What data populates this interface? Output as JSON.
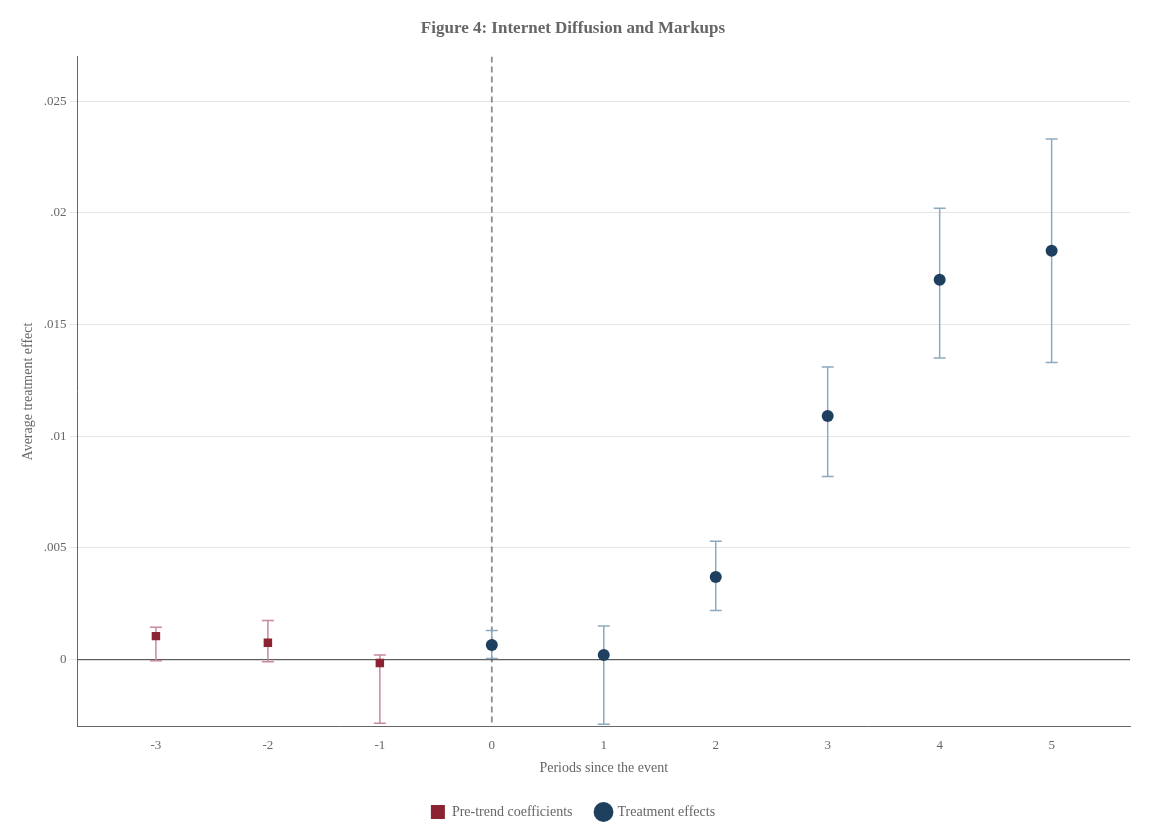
{
  "chart_data": {
    "type": "scatter",
    "title": "Figure 4: Internet Diffusion and Markups",
    "x_label": "Periods since the event",
    "y_label": "Average treatment effect",
    "xlim": [
      -3.7,
      5.7
    ],
    "ylim": [
      -0.003,
      0.027
    ],
    "xticks": [
      -3,
      -2,
      -1,
      0,
      1,
      2,
      3,
      4,
      5
    ],
    "yticks": [
      0,
      {
        "value": 0.005,
        "label": ".005"
      },
      {
        "value": 0.01,
        "label": ".01"
      },
      {
        "value": 0.015,
        "label": ".015"
      },
      {
        "value": 0.02,
        "label": ".02"
      },
      {
        "value": 0.025,
        "label": ".025"
      }
    ],
    "grid": "y",
    "legend": "bottom",
    "hline": 0,
    "vline": 0,
    "vline_style": "dashed",
    "series": [
      {
        "name": "Pre-trend coefficients",
        "color": "#8B2332",
        "error_color": "#C8899A",
        "marker": "square",
        "x": [
          -3,
          -2,
          -1
        ],
        "values": [
          0.00105,
          0.00075,
          -0.00015
        ],
        "ci_low": [
          -5e-05,
          -0.0001,
          -0.00285
        ],
        "ci_high": [
          0.00145,
          0.00175,
          0.0002
        ]
      },
      {
        "name": "Treatment effects",
        "color": "#1F3F5F",
        "error_color": "#8AAABF",
        "marker": "circle",
        "x": [
          0,
          1,
          2,
          3,
          4,
          5
        ],
        "values": [
          0.00065,
          0.0002,
          0.0037,
          0.0109,
          0.017,
          0.0183
        ],
        "ci_low": [
          5e-05,
          -0.0029,
          0.0022,
          0.0082,
          0.0135,
          0.0133
        ],
        "ci_high": [
          0.0013,
          0.0015,
          0.0053,
          0.0131,
          0.0202,
          0.0233
        ]
      }
    ]
  }
}
